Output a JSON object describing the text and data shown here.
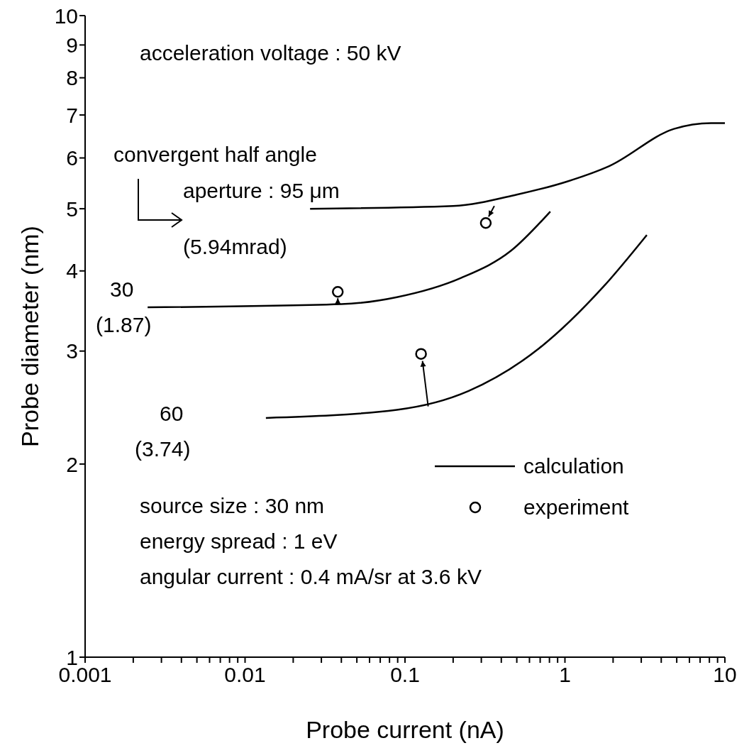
{
  "chart_data": {
    "type": "line",
    "xlabel": "Probe current (nA)",
    "ylabel": "Probe diameter (nm)",
    "log": "xy",
    "xlim": [
      0.001,
      10
    ],
    "ylim": [
      1,
      10
    ],
    "xticks": [
      0.001,
      {
        "value": 0.002,
        "label": null
      },
      {
        "value": 0.003,
        "label": null
      },
      {
        "value": 0.004,
        "label": null
      },
      {
        "value": 0.005,
        "label": null
      },
      {
        "value": 0.006,
        "label": null
      },
      {
        "value": 0.007,
        "label": null
      },
      {
        "value": 0.008,
        "label": null
      },
      {
        "value": 0.009,
        "label": null
      },
      0.01,
      {
        "value": 0.02,
        "label": null
      },
      {
        "value": 0.03,
        "label": null
      },
      {
        "value": 0.04,
        "label": null
      },
      {
        "value": 0.05,
        "label": null
      },
      {
        "value": 0.06,
        "label": null
      },
      {
        "value": 0.07,
        "label": null
      },
      {
        "value": 0.08,
        "label": null
      },
      {
        "value": 0.09,
        "label": null
      },
      0.1,
      {
        "value": 0.2,
        "label": null
      },
      {
        "value": 0.3,
        "label": null
      },
      {
        "value": 0.4,
        "label": null
      },
      {
        "value": 0.5,
        "label": null
      },
      {
        "value": 0.6,
        "label": null
      },
      {
        "value": 0.7,
        "label": null
      },
      {
        "value": 0.8,
        "label": null
      },
      {
        "value": 0.9,
        "label": null
      },
      1,
      {
        "value": 2,
        "label": null
      },
      {
        "value": 3,
        "label": null
      },
      {
        "value": 4,
        "label": null
      },
      {
        "value": 5,
        "label": null
      },
      {
        "value": 6,
        "label": null
      },
      {
        "value": 7,
        "label": null
      },
      {
        "value": 8,
        "label": null
      },
      {
        "value": 9,
        "label": null
      },
      10
    ],
    "yticks": [
      1,
      2,
      3,
      4,
      5,
      6,
      7,
      8,
      9,
      10
    ],
    "legend": "right",
    "line_style": "solid",
    "series": [
      {
        "name": "calculation",
        "color": "#000000",
        "marker": "none",
        "x": [
          0.0255,
          0.2,
          0.5,
          1,
          1.9,
          4.8,
          8.2,
          10
        ],
        "values": [
          5.0,
          5.05,
          5.26,
          5.5,
          5.83,
          6.66,
          6.8,
          6.8
        ]
      },
      {
        "color": "#000000",
        "marker": "none",
        "x": [
          0.00246,
          0.04,
          0.089,
          0.224,
          0.46,
          0.81
        ],
        "values": [
          3.51,
          3.55,
          3.64,
          3.9,
          4.3,
          4.95
        ]
      },
      {
        "color": "#000000",
        "marker": "none",
        "x": [
          0.0135,
          0.089,
          0.25,
          0.69,
          1.74,
          3.25
        ],
        "values": [
          2.36,
          2.43,
          2.6,
          3.03,
          3.78,
          4.55
        ]
      },
      {
        "name": "experiment",
        "type": "scatter",
        "color": "#000000",
        "marker": "circle",
        "x": [
          0.32,
          0.038,
          0.126
        ],
        "values": [
          4.75,
          3.71,
          2.97
        ]
      }
    ],
    "annotations": [
      "acceleration voltage : 50 kV",
      "convergent half angle",
      "aperture : 95 μm",
      "(5.94mrad)",
      "30",
      "(1.87)",
      "60",
      "(3.74)",
      "source size : 30 nm",
      "energy spread : 1 eV",
      "angular current : 0.4 mA/sr at 3.6 kV"
    ]
  }
}
